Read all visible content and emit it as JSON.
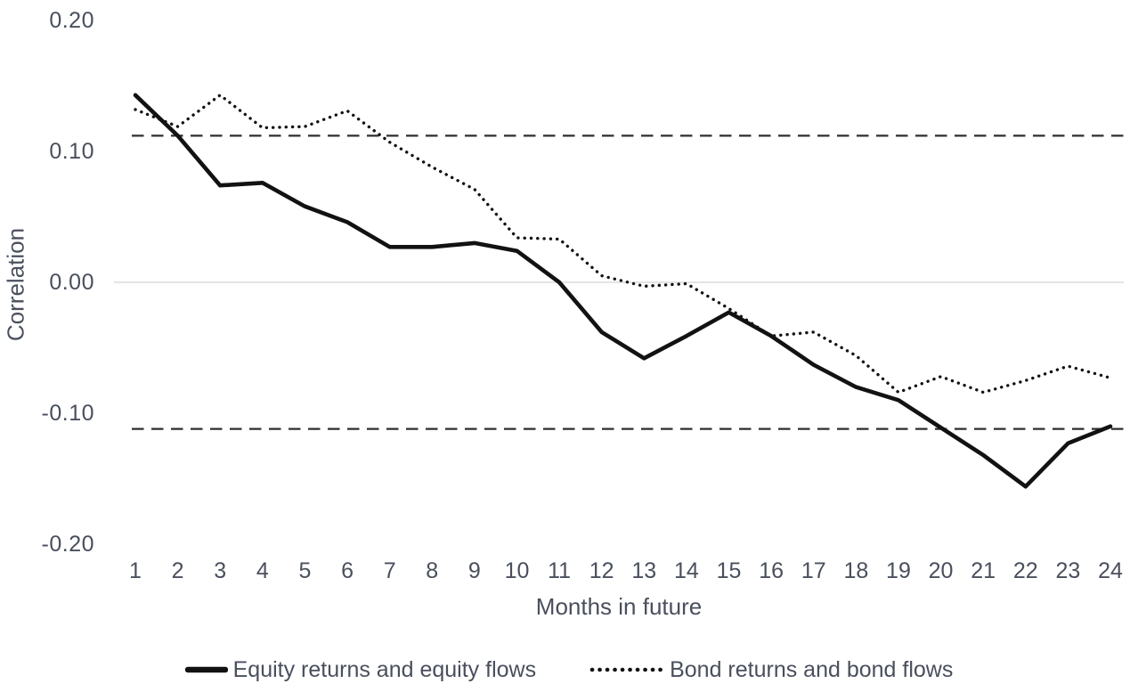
{
  "colors": {
    "text": "#494f5c",
    "line": "#121212",
    "zero_gridline": "#dcdcdc",
    "dashed_band": "#2e2e2e",
    "background": "#ffffff"
  },
  "chart_data": {
    "type": "line",
    "title": "",
    "xlabel": "Months in future",
    "ylabel": "Correlation",
    "x": [
      1,
      2,
      3,
      4,
      5,
      6,
      7,
      8,
      9,
      10,
      11,
      12,
      13,
      14,
      15,
      16,
      17,
      18,
      19,
      20,
      21,
      22,
      23,
      24
    ],
    "xtick_labels": [
      "1",
      "2",
      "3",
      "4",
      "5",
      "6",
      "7",
      "8",
      "9",
      "10",
      "11",
      "12",
      "13",
      "14",
      "15",
      "16",
      "17",
      "18",
      "19",
      "20",
      "21",
      "22",
      "23",
      "24"
    ],
    "ytick_values": [
      0.2,
      0.1,
      0.0,
      -0.1,
      -0.2
    ],
    "ytick_labels": [
      "0.20",
      "0.10",
      "0.00",
      "-0.10",
      "-0.20"
    ],
    "ylim": [
      -0.2,
      0.2
    ],
    "xlim": [
      1,
      24
    ],
    "grid": "zero-line-only",
    "legend_position": "bottom-center",
    "series": [
      {
        "name": "Equity returns and equity flows",
        "line_style": "solid",
        "values": [
          0.143,
          0.112,
          0.074,
          0.076,
          0.058,
          0.046,
          0.027,
          0.027,
          0.03,
          0.024,
          0.0,
          -0.038,
          -0.058,
          -0.041,
          -0.023,
          -0.041,
          -0.063,
          -0.08,
          -0.09,
          -0.111,
          -0.132,
          -0.156,
          -0.123,
          -0.11
        ]
      },
      {
        "name": "Bond returns and bond flows",
        "line_style": "dotted",
        "values": [
          0.132,
          0.119,
          0.143,
          0.118,
          0.119,
          0.131,
          0.107,
          0.088,
          0.071,
          0.034,
          0.033,
          0.005,
          -0.003,
          -0.001,
          -0.02,
          -0.041,
          -0.038,
          -0.056,
          -0.084,
          -0.072,
          -0.084,
          -0.075,
          -0.064,
          -0.073
        ]
      }
    ],
    "reference_lines": [
      {
        "name": "upper-confidence-band",
        "value": 0.112,
        "style": "dashed"
      },
      {
        "name": "lower-confidence-band",
        "value": -0.112,
        "style": "dashed"
      },
      {
        "name": "zero-line",
        "value": 0.0,
        "style": "solid-light"
      }
    ]
  },
  "legend": {
    "items": [
      {
        "label": "Equity returns and equity flows",
        "swatch": "solid-line"
      },
      {
        "label": "Bond returns and bond flows",
        "swatch": "dotted-line"
      }
    ]
  }
}
